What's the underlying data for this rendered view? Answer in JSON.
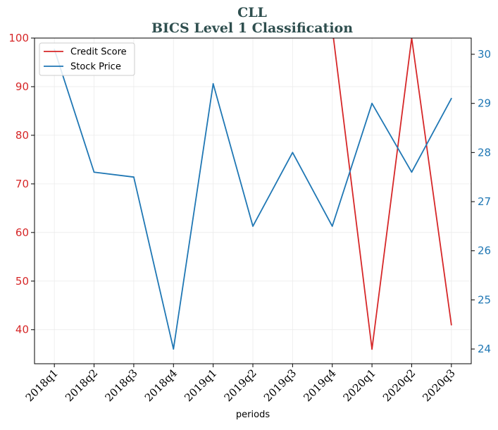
{
  "chart_data": {
    "type": "line",
    "title": "CLL",
    "subtitle": "BICS Level 1 Classification",
    "xlabel": "periods",
    "ylabel_left": "",
    "ylabel_right": "",
    "categories": [
      "2018q1",
      "2018q2",
      "2018q3",
      "2018q4",
      "2019q1",
      "2019q2",
      "2019q3",
      "2019q4",
      "2020q1",
      "2020q2",
      "2020q3"
    ],
    "left_axis": {
      "ylim": [
        33,
        100
      ],
      "ticks": [
        40,
        50,
        60,
        70,
        80,
        90,
        100
      ],
      "color": "#d62728"
    },
    "right_axis": {
      "ylim": [
        23.7,
        30.33
      ],
      "ticks": [
        24,
        25,
        26,
        27,
        28,
        29,
        30
      ],
      "color": "#1f77b4"
    },
    "series": [
      {
        "name": "Credit Score",
        "axis": "left",
        "color": "#d62728",
        "values": [
          null,
          null,
          null,
          null,
          null,
          null,
          null,
          102,
          36,
          100,
          41
        ]
      },
      {
        "name": "Stock Price",
        "axis": "right",
        "color": "#1f77b4",
        "values": [
          30.1,
          27.6,
          27.5,
          24.0,
          29.4,
          26.5,
          28.0,
          26.5,
          29.0,
          27.6,
          29.1
        ]
      }
    ],
    "grid": true,
    "legend_position": "top-left",
    "colors": {
      "title": "#2f4f4f",
      "grid": "#ebebeb"
    }
  }
}
